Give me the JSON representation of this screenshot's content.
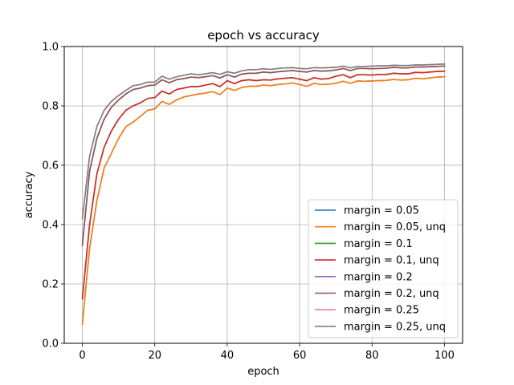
{
  "chart_data": {
    "type": "line",
    "title": "epoch vs accuracy",
    "xlabel": "epoch",
    "ylabel": "accuracy",
    "xlim": [
      -5,
      105
    ],
    "ylim": [
      0,
      1.0
    ],
    "xticks": [
      0,
      20,
      40,
      60,
      80,
      100
    ],
    "yticks": [
      0.0,
      0.2,
      0.4,
      0.6,
      0.8,
      1.0
    ],
    "xtick_labels": [
      "0",
      "20",
      "40",
      "60",
      "80",
      "100"
    ],
    "ytick_labels": [
      "0.0",
      "0.2",
      "0.4",
      "0.6",
      "0.8",
      "1.0"
    ],
    "grid": true,
    "legend_position": "lower-right",
    "x": [
      0,
      2,
      4,
      6,
      8,
      10,
      12,
      14,
      16,
      18,
      20,
      22,
      24,
      26,
      28,
      30,
      32,
      34,
      36,
      38,
      40,
      42,
      44,
      46,
      48,
      50,
      52,
      54,
      56,
      58,
      60,
      62,
      64,
      66,
      68,
      70,
      72,
      74,
      76,
      78,
      80,
      82,
      84,
      86,
      88,
      90,
      92,
      94,
      96,
      98,
      100
    ],
    "series": [
      {
        "name": "margin = 0.05",
        "color": "#1f77b4",
        "values": [
          0.065,
          0.32,
          0.48,
          0.59,
          0.64,
          0.69,
          0.73,
          0.745,
          0.765,
          0.785,
          0.79,
          0.815,
          0.805,
          0.82,
          0.83,
          0.835,
          0.84,
          0.843,
          0.848,
          0.838,
          0.86,
          0.852,
          0.862,
          0.866,
          0.866,
          0.87,
          0.868,
          0.872,
          0.874,
          0.877,
          0.872,
          0.866,
          0.876,
          0.872,
          0.873,
          0.876,
          0.883,
          0.876,
          0.884,
          0.883,
          0.884,
          0.885,
          0.886,
          0.889,
          0.887,
          0.888,
          0.893,
          0.891,
          0.894,
          0.897,
          0.898
        ]
      },
      {
        "name": "margin = 0.05, unq",
        "color": "#ff7f0e",
        "values": [
          0.065,
          0.32,
          0.48,
          0.59,
          0.64,
          0.69,
          0.73,
          0.745,
          0.765,
          0.785,
          0.79,
          0.815,
          0.805,
          0.82,
          0.83,
          0.835,
          0.84,
          0.843,
          0.848,
          0.838,
          0.86,
          0.852,
          0.862,
          0.866,
          0.866,
          0.87,
          0.868,
          0.872,
          0.874,
          0.877,
          0.872,
          0.866,
          0.876,
          0.872,
          0.873,
          0.876,
          0.883,
          0.876,
          0.884,
          0.883,
          0.884,
          0.885,
          0.886,
          0.889,
          0.887,
          0.888,
          0.893,
          0.891,
          0.894,
          0.897,
          0.898
        ]
      },
      {
        "name": "margin = 0.1",
        "color": "#2ca02c",
        "values": [
          0.15,
          0.4,
          0.57,
          0.66,
          0.715,
          0.755,
          0.785,
          0.8,
          0.81,
          0.825,
          0.828,
          0.85,
          0.84,
          0.855,
          0.86,
          0.865,
          0.865,
          0.87,
          0.875,
          0.865,
          0.885,
          0.875,
          0.885,
          0.888,
          0.885,
          0.888,
          0.887,
          0.891,
          0.893,
          0.895,
          0.89,
          0.885,
          0.895,
          0.89,
          0.892,
          0.9,
          0.905,
          0.895,
          0.905,
          0.905,
          0.904,
          0.906,
          0.906,
          0.91,
          0.908,
          0.908,
          0.913,
          0.912,
          0.914,
          0.916,
          0.917
        ]
      },
      {
        "name": "margin = 0.1, unq",
        "color": "#d62728",
        "values": [
          0.15,
          0.4,
          0.57,
          0.66,
          0.715,
          0.755,
          0.785,
          0.8,
          0.81,
          0.825,
          0.828,
          0.85,
          0.84,
          0.855,
          0.86,
          0.865,
          0.865,
          0.87,
          0.875,
          0.865,
          0.885,
          0.875,
          0.885,
          0.888,
          0.885,
          0.888,
          0.887,
          0.891,
          0.893,
          0.895,
          0.89,
          0.885,
          0.895,
          0.89,
          0.892,
          0.9,
          0.905,
          0.895,
          0.905,
          0.905,
          0.904,
          0.906,
          0.906,
          0.91,
          0.908,
          0.908,
          0.913,
          0.912,
          0.914,
          0.916,
          0.917
        ]
      },
      {
        "name": "margin = 0.2",
        "color": "#9467bd",
        "values": [
          0.33,
          0.58,
          0.69,
          0.755,
          0.795,
          0.82,
          0.84,
          0.855,
          0.86,
          0.868,
          0.87,
          0.888,
          0.878,
          0.888,
          0.892,
          0.897,
          0.895,
          0.898,
          0.902,
          0.894,
          0.905,
          0.897,
          0.907,
          0.91,
          0.91,
          0.914,
          0.912,
          0.915,
          0.917,
          0.919,
          0.916,
          0.914,
          0.919,
          0.917,
          0.918,
          0.921,
          0.926,
          0.919,
          0.926,
          0.926,
          0.925,
          0.926,
          0.927,
          0.93,
          0.928,
          0.928,
          0.931,
          0.931,
          0.932,
          0.933,
          0.934
        ]
      },
      {
        "name": "margin = 0.2, unq",
        "color": "#8c564b",
        "values": [
          0.33,
          0.58,
          0.69,
          0.755,
          0.795,
          0.82,
          0.84,
          0.855,
          0.86,
          0.868,
          0.87,
          0.888,
          0.878,
          0.888,
          0.892,
          0.897,
          0.895,
          0.898,
          0.902,
          0.894,
          0.905,
          0.897,
          0.907,
          0.91,
          0.91,
          0.914,
          0.912,
          0.915,
          0.917,
          0.919,
          0.916,
          0.914,
          0.919,
          0.917,
          0.918,
          0.921,
          0.926,
          0.919,
          0.926,
          0.926,
          0.925,
          0.926,
          0.927,
          0.93,
          0.928,
          0.928,
          0.931,
          0.931,
          0.932,
          0.933,
          0.934
        ]
      },
      {
        "name": "margin = 0.25",
        "color": "#e377c2",
        "values": [
          0.42,
          0.63,
          0.73,
          0.785,
          0.815,
          0.835,
          0.852,
          0.868,
          0.872,
          0.88,
          0.88,
          0.9,
          0.89,
          0.898,
          0.903,
          0.908,
          0.905,
          0.908,
          0.912,
          0.906,
          0.915,
          0.91,
          0.918,
          0.922,
          0.922,
          0.925,
          0.923,
          0.926,
          0.928,
          0.929,
          0.926,
          0.925,
          0.929,
          0.928,
          0.929,
          0.93,
          0.934,
          0.928,
          0.933,
          0.933,
          0.934,
          0.935,
          0.935,
          0.937,
          0.936,
          0.936,
          0.938,
          0.938,
          0.939,
          0.94,
          0.941
        ]
      },
      {
        "name": "margin = 0.25, unq",
        "color": "#7f7f7f",
        "values": [
          0.42,
          0.63,
          0.73,
          0.785,
          0.815,
          0.835,
          0.852,
          0.868,
          0.872,
          0.88,
          0.88,
          0.9,
          0.89,
          0.898,
          0.903,
          0.908,
          0.905,
          0.908,
          0.912,
          0.906,
          0.915,
          0.91,
          0.918,
          0.922,
          0.922,
          0.925,
          0.923,
          0.926,
          0.928,
          0.929,
          0.926,
          0.925,
          0.929,
          0.928,
          0.929,
          0.93,
          0.934,
          0.928,
          0.933,
          0.933,
          0.934,
          0.935,
          0.935,
          0.937,
          0.936,
          0.936,
          0.938,
          0.938,
          0.939,
          0.94,
          0.941
        ]
      }
    ]
  }
}
